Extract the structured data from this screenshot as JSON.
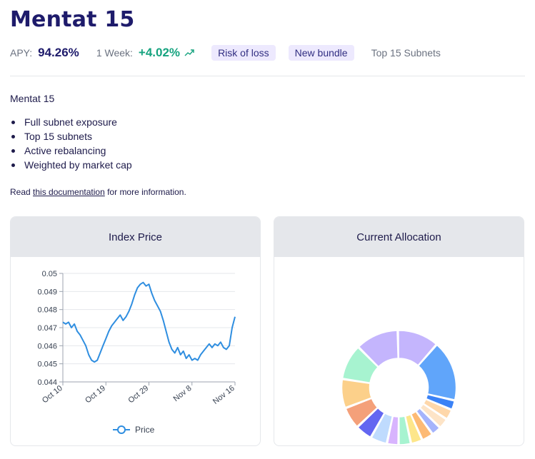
{
  "header": {
    "title": "Mentat 15",
    "apy_label": "APY:",
    "apy_value": "94.26%",
    "week_label": "1 Week:",
    "week_value": "+4.02%",
    "badges": [
      "Risk of loss",
      "New bundle"
    ],
    "tag": "Top 15 Subnets"
  },
  "description": {
    "title": "Mentat 15",
    "bullets": [
      "Full subnet exposure",
      "Top 15 subnets",
      "Active rebalancing",
      "Weighted by market cap"
    ],
    "read_prefix": "Read ",
    "read_link": "this documentation",
    "read_suffix": " for more information."
  },
  "cards": {
    "price_title": "Index Price",
    "allocation_title": "Current Allocation"
  },
  "chart_data": [
    {
      "type": "line",
      "title": "Index Price",
      "xlabel": "",
      "ylabel": "",
      "ylim": [
        0.044,
        0.05
      ],
      "yticks": [
        "0.044",
        "0.045",
        "0.046",
        "0.047",
        "0.048",
        "0.049",
        "0.05"
      ],
      "xticks": [
        "Oct 10",
        "Oct 19",
        "Oct 29",
        "Nov 8",
        "Nov 16"
      ],
      "grid": "horizontal",
      "legend": "bottom",
      "series": [
        {
          "name": "Price",
          "color": "#2f8ee0",
          "values": [
            0.0473,
            0.0472,
            0.0473,
            0.047,
            0.0472,
            0.0468,
            0.0466,
            0.0463,
            0.046,
            0.0455,
            0.0452,
            0.0451,
            0.0452,
            0.0456,
            0.046,
            0.0464,
            0.0468,
            0.0471,
            0.0473,
            0.0475,
            0.0477,
            0.0474,
            0.0476,
            0.0479,
            0.0483,
            0.0488,
            0.0492,
            0.0494,
            0.0495,
            0.0493,
            0.0494,
            0.0489,
            0.0485,
            0.0482,
            0.0479,
            0.0474,
            0.0468,
            0.0462,
            0.0458,
            0.0456,
            0.0459,
            0.0455,
            0.0457,
            0.0453,
            0.0455,
            0.0452,
            0.0453,
            0.0452,
            0.0455,
            0.0457,
            0.0459,
            0.0461,
            0.0459,
            0.0461,
            0.046,
            0.0462,
            0.0459,
            0.0458,
            0.046,
            0.047,
            0.0476
          ]
        }
      ]
    },
    {
      "type": "pie",
      "title": "Current Allocation",
      "donut": true,
      "series": [
        {
          "values": [
            11.1,
            16.2,
            2.6,
            2.8,
            2.8,
            2.6,
            3.1,
            3.1,
            3.3,
            3.1,
            4.5,
            4.5,
            5.9,
            7.8,
            9.5,
            11.5
          ],
          "colors": [
            "#c4b5fd",
            "#60a5fa",
            "#3b82f6",
            "#fed7aa",
            "#fde4c7",
            "#a5b4fc",
            "#fdba74",
            "#fde68a",
            "#a7f3d0",
            "#d8b4fe",
            "#bfdbfe",
            "#6366f1",
            "#f4a07a",
            "#fcd08a",
            "#a7f3d0",
            "#c4b5fd"
          ]
        }
      ]
    }
  ]
}
